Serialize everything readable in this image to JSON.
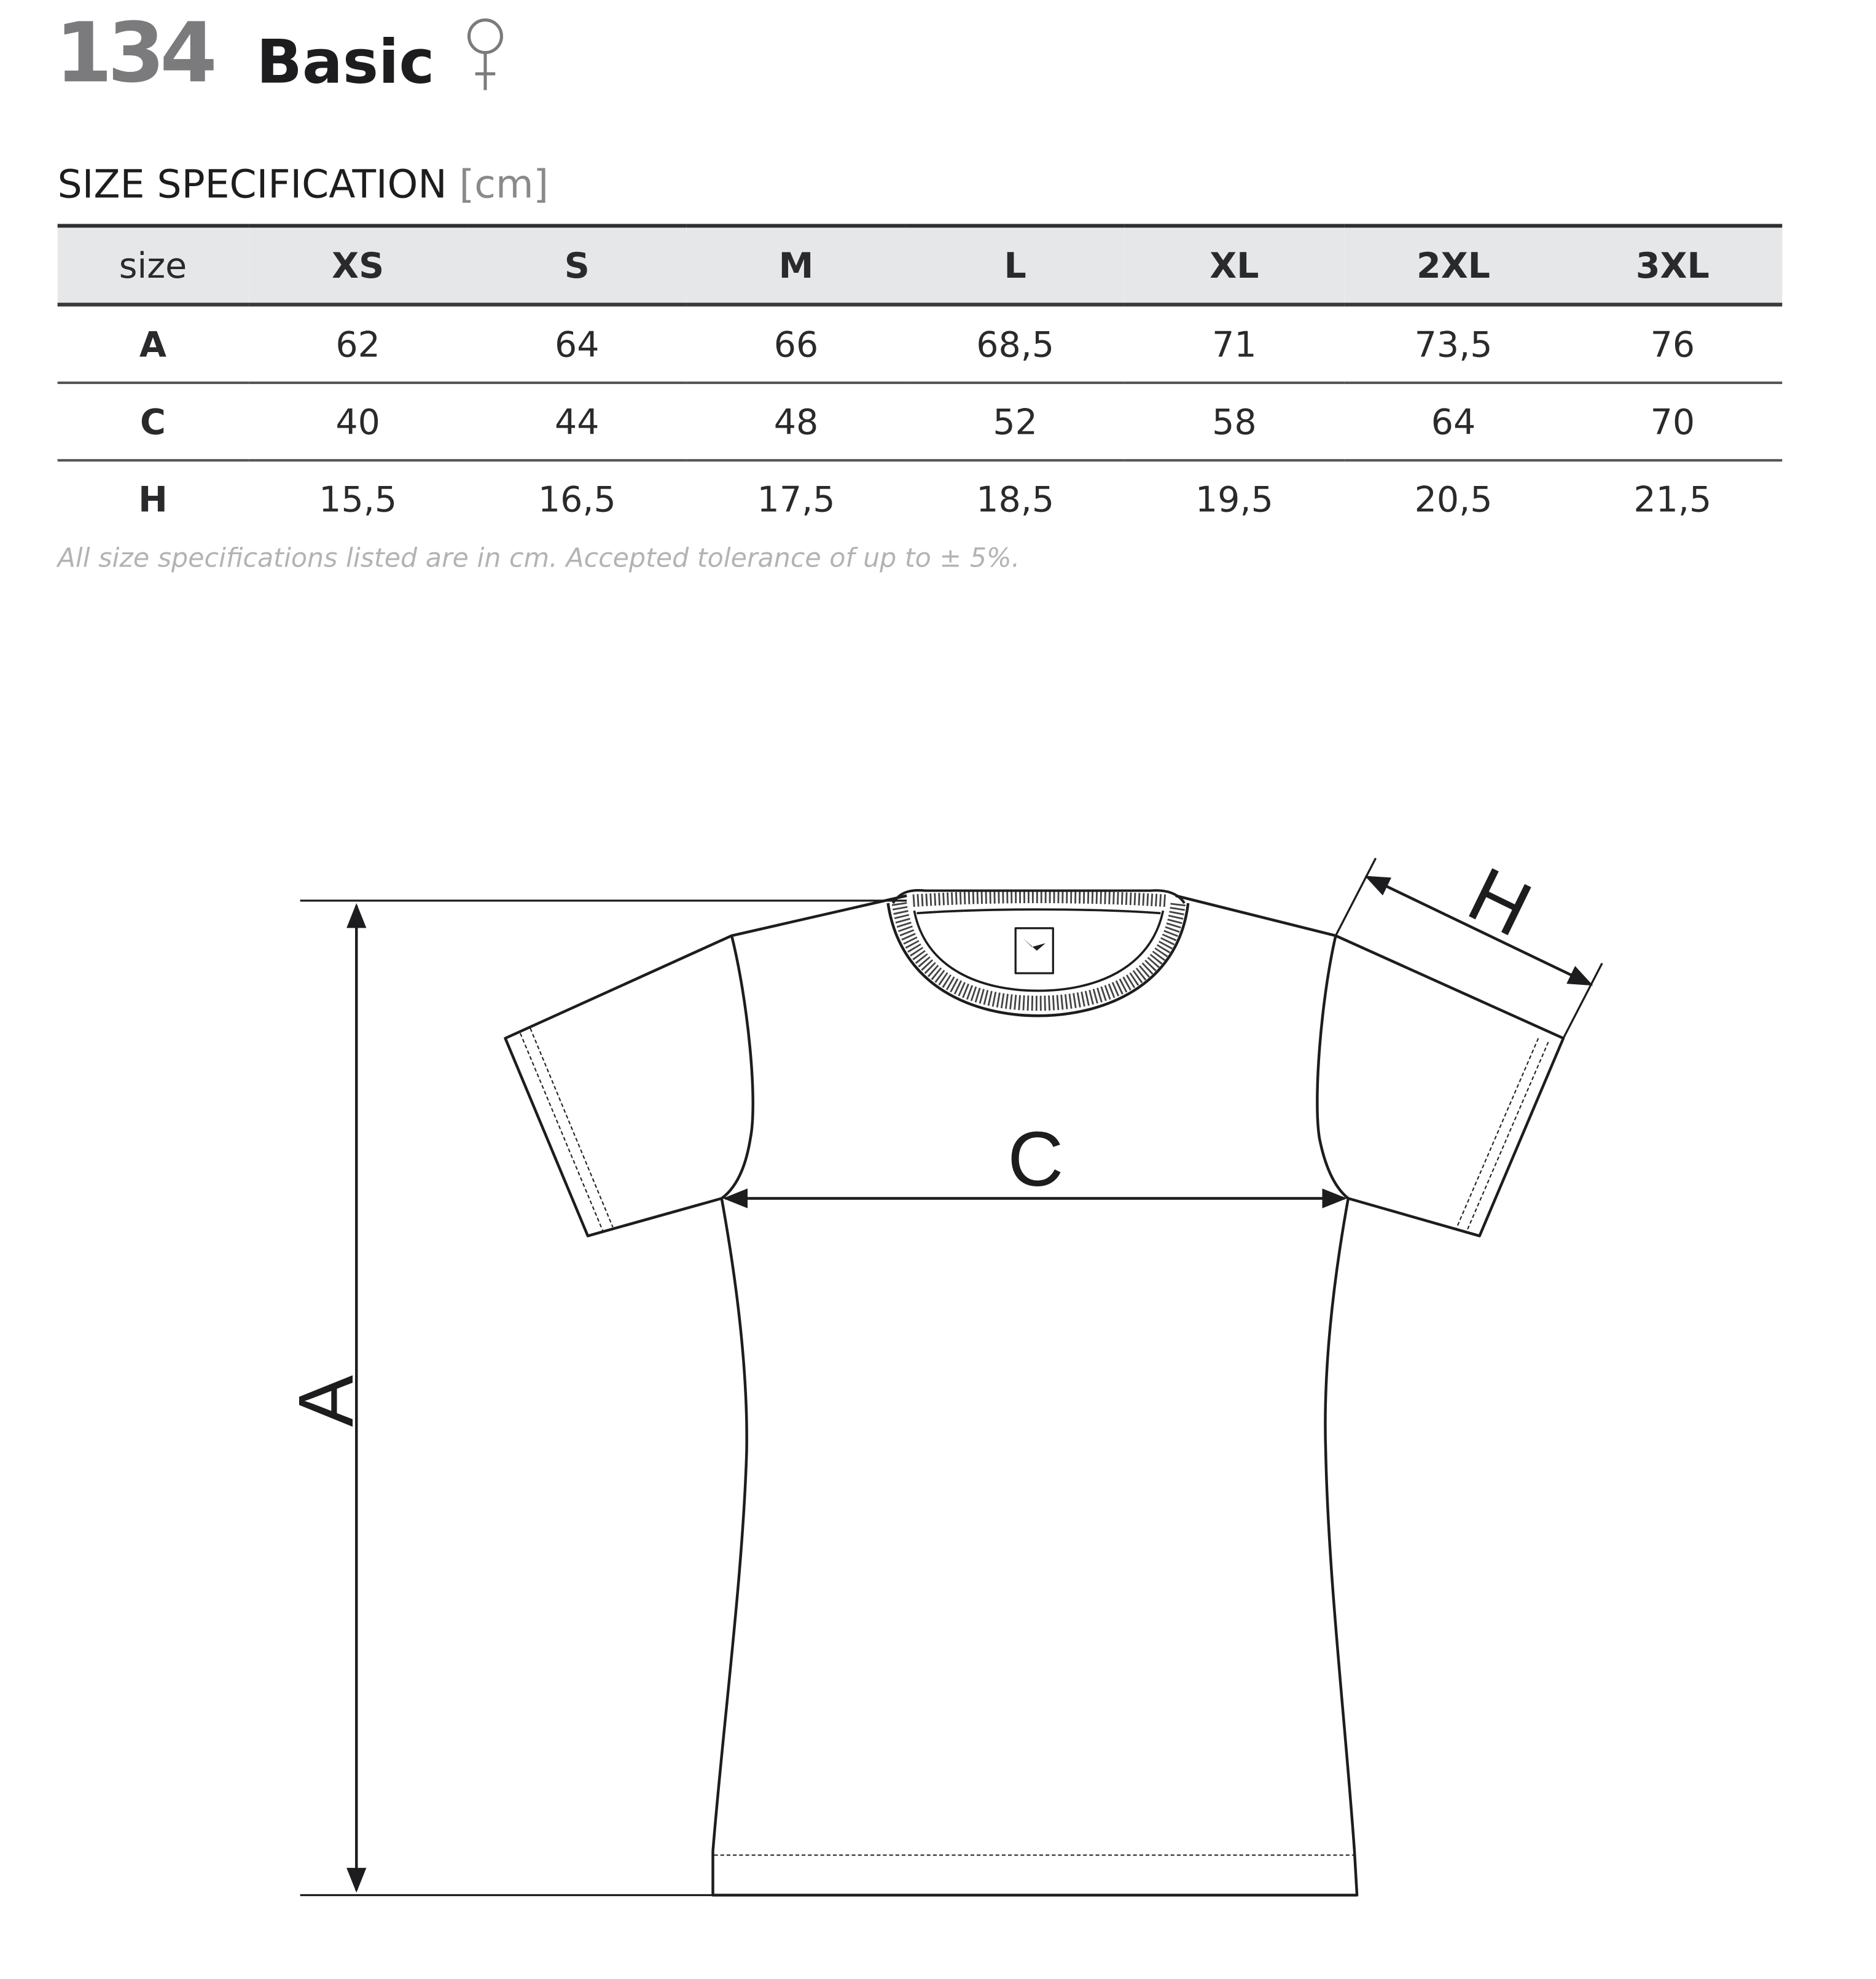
{
  "header": {
    "product_code": "134",
    "product_name": "Basic",
    "gender_icon": "female-symbol-icon"
  },
  "spec": {
    "title": "SIZE SPECIFICATION",
    "unit": "[cm]"
  },
  "table": {
    "columns": [
      "size",
      "XS",
      "S",
      "M",
      "L",
      "XL",
      "2XL",
      "3XL"
    ],
    "rows": [
      {
        "label": "A",
        "values": [
          "62",
          "64",
          "66",
          "68,5",
          "71",
          "73,5",
          "76"
        ]
      },
      {
        "label": "C",
        "values": [
          "40",
          "44",
          "48",
          "52",
          "58",
          "64",
          "70"
        ]
      },
      {
        "label": "H",
        "values": [
          "15,5",
          "16,5",
          "17,5",
          "18,5",
          "19,5",
          "20,5",
          "21,5"
        ]
      }
    ]
  },
  "note": "All size specifications listed are in cm. Accepted tolerance of up to ± 5%.",
  "diagram": {
    "label_a": "A",
    "label_c": "C",
    "label_h": "H"
  },
  "colors": {
    "text": "#1d1d1f",
    "code_gray": "#7b7b7d",
    "header_bg": "#e6e7e9",
    "note_gray": "#b3b3b5"
  }
}
